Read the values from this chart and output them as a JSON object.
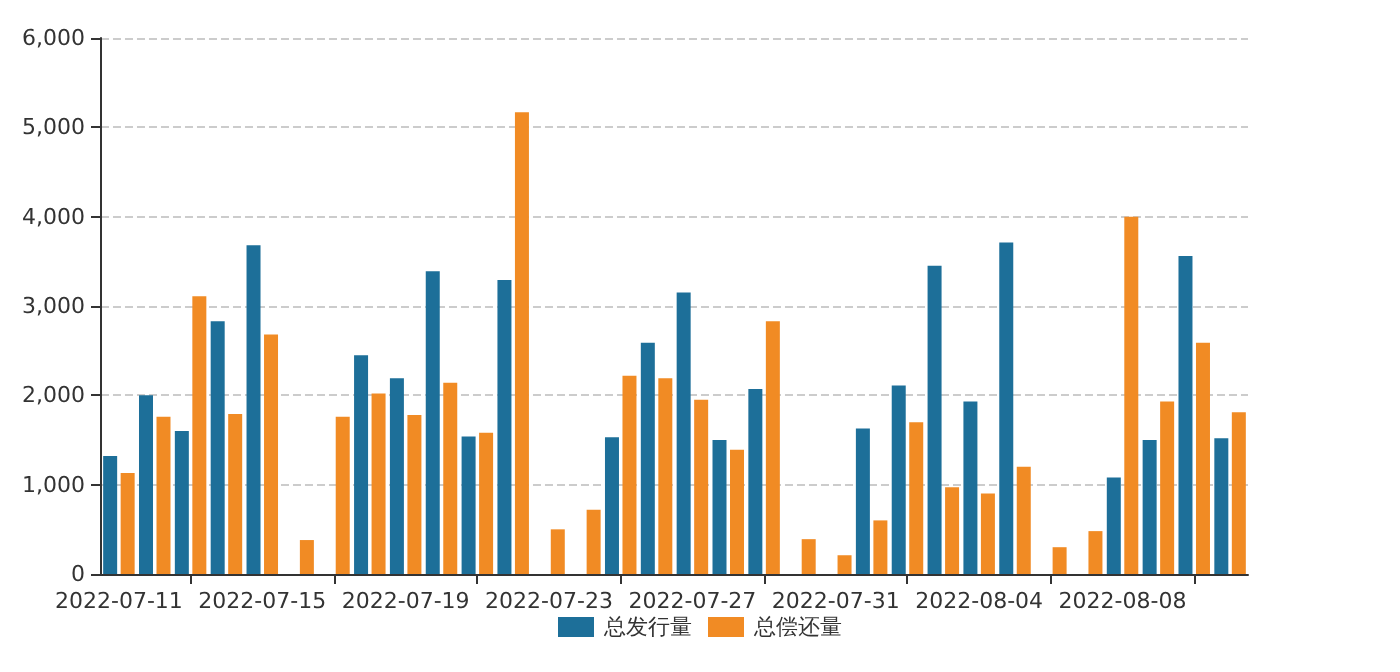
{
  "chart_data": {
    "type": "bar",
    "categories": [
      "2022-07-11",
      null,
      null,
      null,
      "2022-07-15",
      null,
      null,
      null,
      "2022-07-19",
      null,
      null,
      null,
      "2022-07-23",
      null,
      null,
      null,
      "2022-07-27",
      null,
      null,
      null,
      "2022-07-31",
      null,
      null,
      null,
      "2022-08-04",
      null,
      null,
      null,
      "2022-08-08",
      null,
      null,
      null
    ],
    "series": [
      {
        "name": "总发行量",
        "color": "#1d6f99",
        "values": [
          1320,
          2000,
          1600,
          2830,
          3680,
          null,
          null,
          2450,
          2190,
          3390,
          1540,
          3290,
          null,
          null,
          1530,
          2590,
          3150,
          1500,
          2070,
          null,
          null,
          1630,
          2110,
          3450,
          1930,
          3710,
          null,
          null,
          1080,
          1500,
          3560,
          1520
        ]
      },
      {
        "name": "总偿还量",
        "color": "#f18b24",
        "values": [
          1130,
          1760,
          3110,
          1790,
          2680,
          380,
          1760,
          2020,
          1780,
          2140,
          1580,
          5170,
          500,
          720,
          2220,
          2190,
          1950,
          1390,
          2830,
          390,
          210,
          600,
          1700,
          970,
          900,
          1200,
          300,
          480,
          4000,
          1930,
          2590,
          1810
        ]
      }
    ],
    "ylim": [
      0,
      6000
    ],
    "yticks": [
      {
        "value": 0,
        "label": "0"
      },
      {
        "value": 1000,
        "label": "1,000"
      },
      {
        "value": 2000,
        "label": "2,000"
      },
      {
        "value": 3000,
        "label": "3,000"
      },
      {
        "value": 4000,
        "label": "4,000"
      },
      {
        "value": 5000,
        "label": "5,000"
      },
      {
        "value": 6000,
        "label": "6,000"
      }
    ],
    "grid": "y",
    "legend": "bottom"
  }
}
